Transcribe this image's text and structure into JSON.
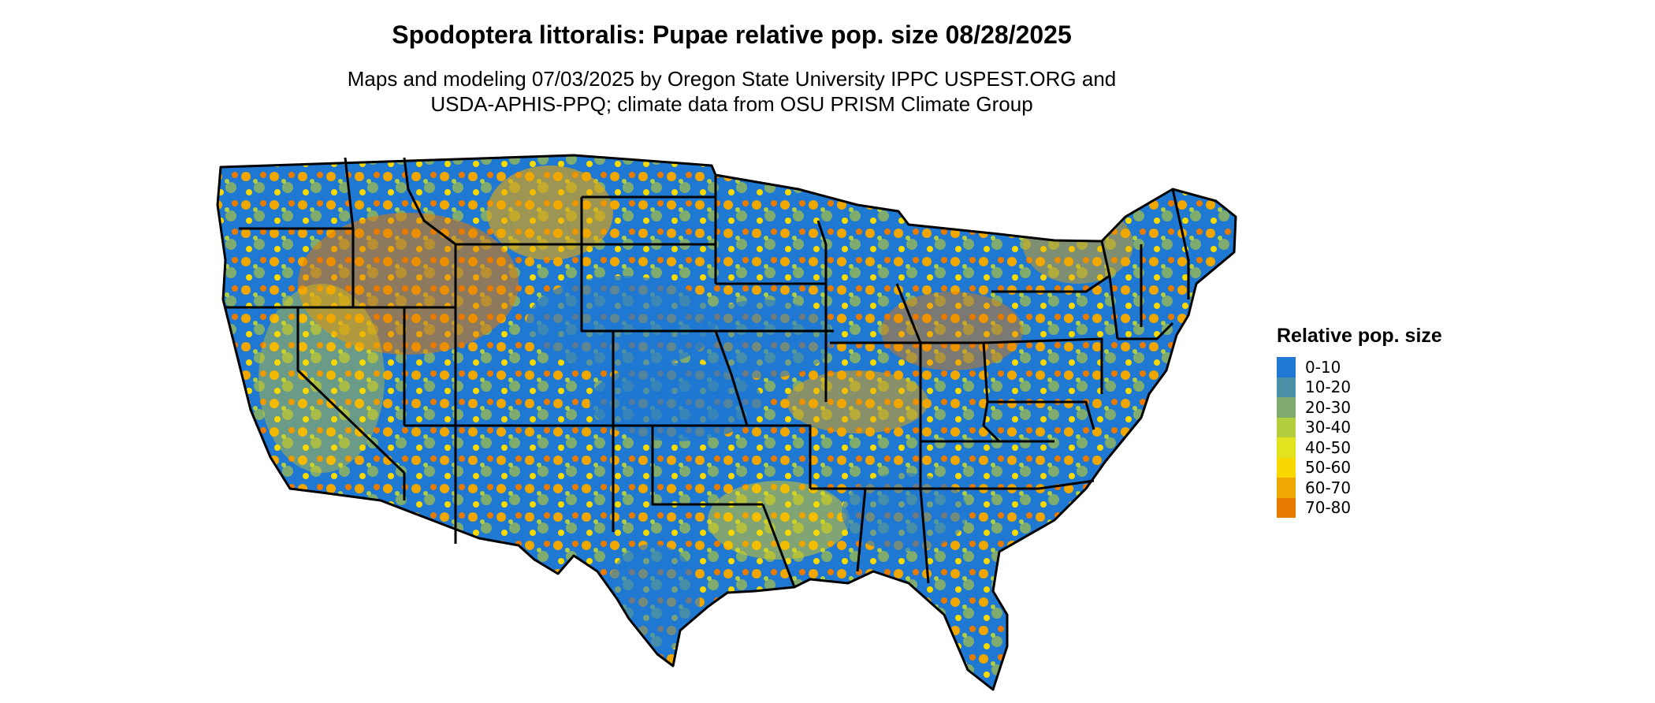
{
  "title": "Spodoptera littoralis: Pupae relative pop. size 08/28/2025",
  "subtitle_line1": "Maps and modeling 07/03/2025 by Oregon State University IPPC USPEST.ORG and",
  "subtitle_line2": "USDA-APHIS-PPQ; climate data from OSU PRISM Climate Group",
  "map": {
    "region": "contiguous-united-states",
    "border_color": "#000000"
  },
  "legend": {
    "title": "Relative pop. size",
    "items": [
      {
        "label": "0-10",
        "color": "#1f78d1"
      },
      {
        "label": "10-20",
        "color": "#4a8fa8"
      },
      {
        "label": "20-30",
        "color": "#7fac6e"
      },
      {
        "label": "30-40",
        "color": "#b4cf3e"
      },
      {
        "label": "40-50",
        "color": "#e0e31d"
      },
      {
        "label": "50-60",
        "color": "#f7d900"
      },
      {
        "label": "60-70",
        "color": "#f0a800"
      },
      {
        "label": "70-80",
        "color": "#e87a00"
      }
    ]
  }
}
